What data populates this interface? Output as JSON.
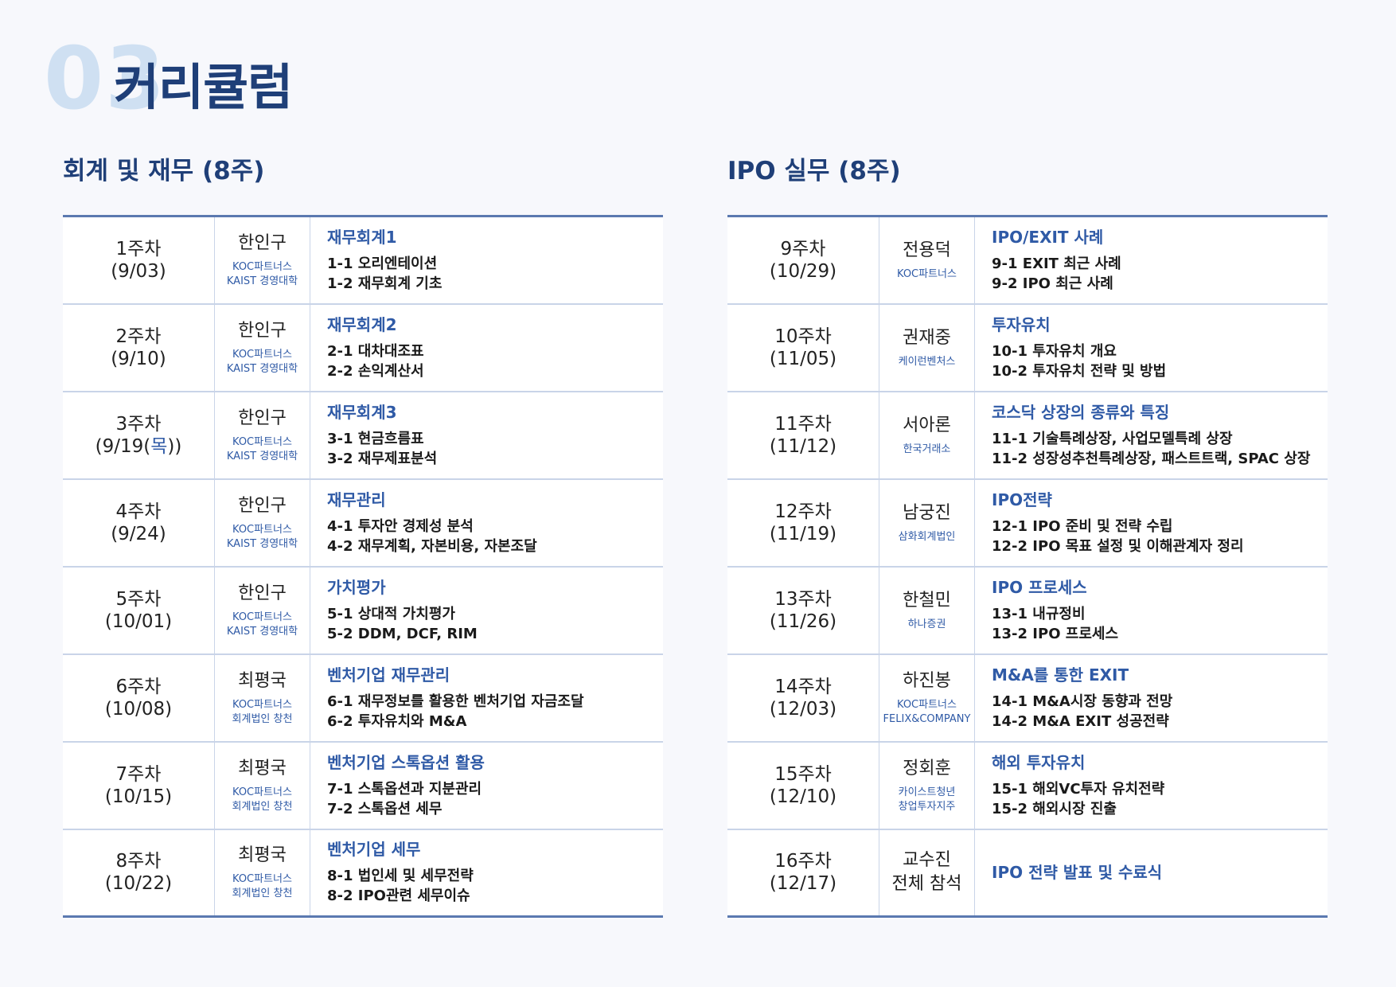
{
  "header": {
    "number": "03",
    "title": "커리큘럼"
  },
  "sections": {
    "left": {
      "title": "회계 및 재무 (8주)",
      "rows": [
        {
          "week": "1주차",
          "date": "(9/03)",
          "date_pre": "",
          "date_hl": "",
          "date_post": "",
          "name": "한인구",
          "aff1": "KOC파트너스",
          "aff2": "KAIST 경영대학",
          "topic": "재무회계1",
          "item1": "1-1 오리엔테이션",
          "item2": "1-2 재무회계 기초"
        },
        {
          "week": "2주차",
          "date": "(9/10)",
          "date_pre": "",
          "date_hl": "",
          "date_post": "",
          "name": "한인구",
          "aff1": "KOC파트너스",
          "aff2": "KAIST 경영대학",
          "topic": "재무회계2",
          "item1": "2-1 대차대조표",
          "item2": "2-2 손익계산서"
        },
        {
          "week": "3주차",
          "date": "",
          "date_pre": "(9/19(",
          "date_hl": "목",
          "date_post": "))",
          "name": "한인구",
          "aff1": "KOC파트너스",
          "aff2": "KAIST 경영대학",
          "topic": "재무회계3",
          "item1": "3-1 현금흐름표",
          "item2": "3-2 재무제표분석"
        },
        {
          "week": "4주차",
          "date": "(9/24)",
          "date_pre": "",
          "date_hl": "",
          "date_post": "",
          "name": "한인구",
          "aff1": "KOC파트너스",
          "aff2": "KAIST 경영대학",
          "topic": "재무관리",
          "item1": "4-1 투자안 경제성 분석",
          "item2": "4-2 재무계획, 자본비용, 자본조달"
        },
        {
          "week": "5주차",
          "date": "(10/01)",
          "date_pre": "",
          "date_hl": "",
          "date_post": "",
          "name": "한인구",
          "aff1": "KOC파트너스",
          "aff2": "KAIST 경영대학",
          "topic": "가치평가",
          "item1": "5-1 상대적 가치평가",
          "item2": "5-2 DDM, DCF, RIM"
        },
        {
          "week": "6주차",
          "date": "(10/08)",
          "date_pre": "",
          "date_hl": "",
          "date_post": "",
          "name": "최평국",
          "aff1": "KOC파트너스",
          "aff2": "회계법인 창천",
          "topic": "벤처기업 재무관리",
          "item1": "6-1 재무정보를 활용한 벤처기업 자금조달",
          "item2": "6-2 투자유치와 M&A"
        },
        {
          "week": "7주차",
          "date": "(10/15)",
          "date_pre": "",
          "date_hl": "",
          "date_post": "",
          "name": "최평국",
          "aff1": "KOC파트너스",
          "aff2": "회계법인 창천",
          "topic": "벤처기업 스톡옵션 활용",
          "item1": "7-1 스톡옵션과 지분관리",
          "item2": "7-2 스톡옵션 세무"
        },
        {
          "week": "8주차",
          "date": "(10/22)",
          "date_pre": "",
          "date_hl": "",
          "date_post": "",
          "name": "최평국",
          "aff1": "KOC파트너스",
          "aff2": "회계법인 창천",
          "topic": "벤처기업 세무",
          "item1": "8-1 법인세 및 세무전략",
          "item2": "8-2 IPO관련 세무이슈"
        }
      ]
    },
    "right": {
      "title": "IPO 실무 (8주)",
      "rows": [
        {
          "week": "9주차",
          "date": "(10/29)",
          "name": "전용덕",
          "aff1": "KOC파트너스",
          "aff2": "",
          "topic": "IPO/EXIT 사례",
          "item1": "9-1 EXIT 최근 사례",
          "item2": "9-2 IPO 최근 사례"
        },
        {
          "week": "10주차",
          "date": "(11/05)",
          "name": "권재중",
          "aff1": "케이런벤처스",
          "aff2": "",
          "topic": "투자유치",
          "item1": "10-1 투자유치 개요",
          "item2": "10-2 투자유치 전략 및 방법"
        },
        {
          "week": "11주차",
          "date": "(11/12)",
          "name": "서아론",
          "aff1": "한국거래소",
          "aff2": "",
          "topic": "코스닥 상장의 종류와 특징",
          "item1": "11-1 기술특례상장, 사업모델특례 상장",
          "item2": "11-2 성장성추천특례상장, 패스트트랙, SPAC 상장"
        },
        {
          "week": "12주차",
          "date": "(11/19)",
          "name": "남궁진",
          "aff1": "삼화회계법인",
          "aff2": "",
          "topic": "IPO전략",
          "item1": "12-1 IPO 준비 및 전략 수립",
          "item2": "12-2 IPO 목표 설정 및 이해관계자 정리"
        },
        {
          "week": "13주차",
          "date": "(11/26)",
          "name": "한철민",
          "aff1": "하나증권",
          "aff2": "",
          "topic": "IPO 프로세스",
          "item1": "13-1 내규정비",
          "item2": "13-2 IPO 프로세스"
        },
        {
          "week": "14주차",
          "date": "(12/03)",
          "name": "하진봉",
          "aff1": "KOC파트너스",
          "aff2": "FELIX&COMPANY",
          "topic": " M&A를 통한 EXIT",
          "item1": "14-1 M&A시장 동향과 전망",
          "item2": "14-2 M&A EXIT 성공전략"
        },
        {
          "week": "15주차",
          "date": "(12/10)",
          "name": "정회훈",
          "aff1": "카이스트청년",
          "aff2": "창업투자지주",
          "topic": "해외 투자유치",
          "item1": "15-1 해외VC투자 유치전략",
          "item2": "15-2 해외시장 진출"
        },
        {
          "week": "16주차",
          "date": "(12/17)",
          "name": "교수진",
          "name2": "전체 참석",
          "aff1": "",
          "aff2": "",
          "topic": "IPO 전략 발표 및 수료식",
          "item1": "",
          "item2": ""
        }
      ]
    }
  },
  "colors": {
    "accent": "#1f3f78",
    "link_blue": "#2f5aa6",
    "number_watermark": "#cfe0f2",
    "rule": "#5b79b0"
  }
}
